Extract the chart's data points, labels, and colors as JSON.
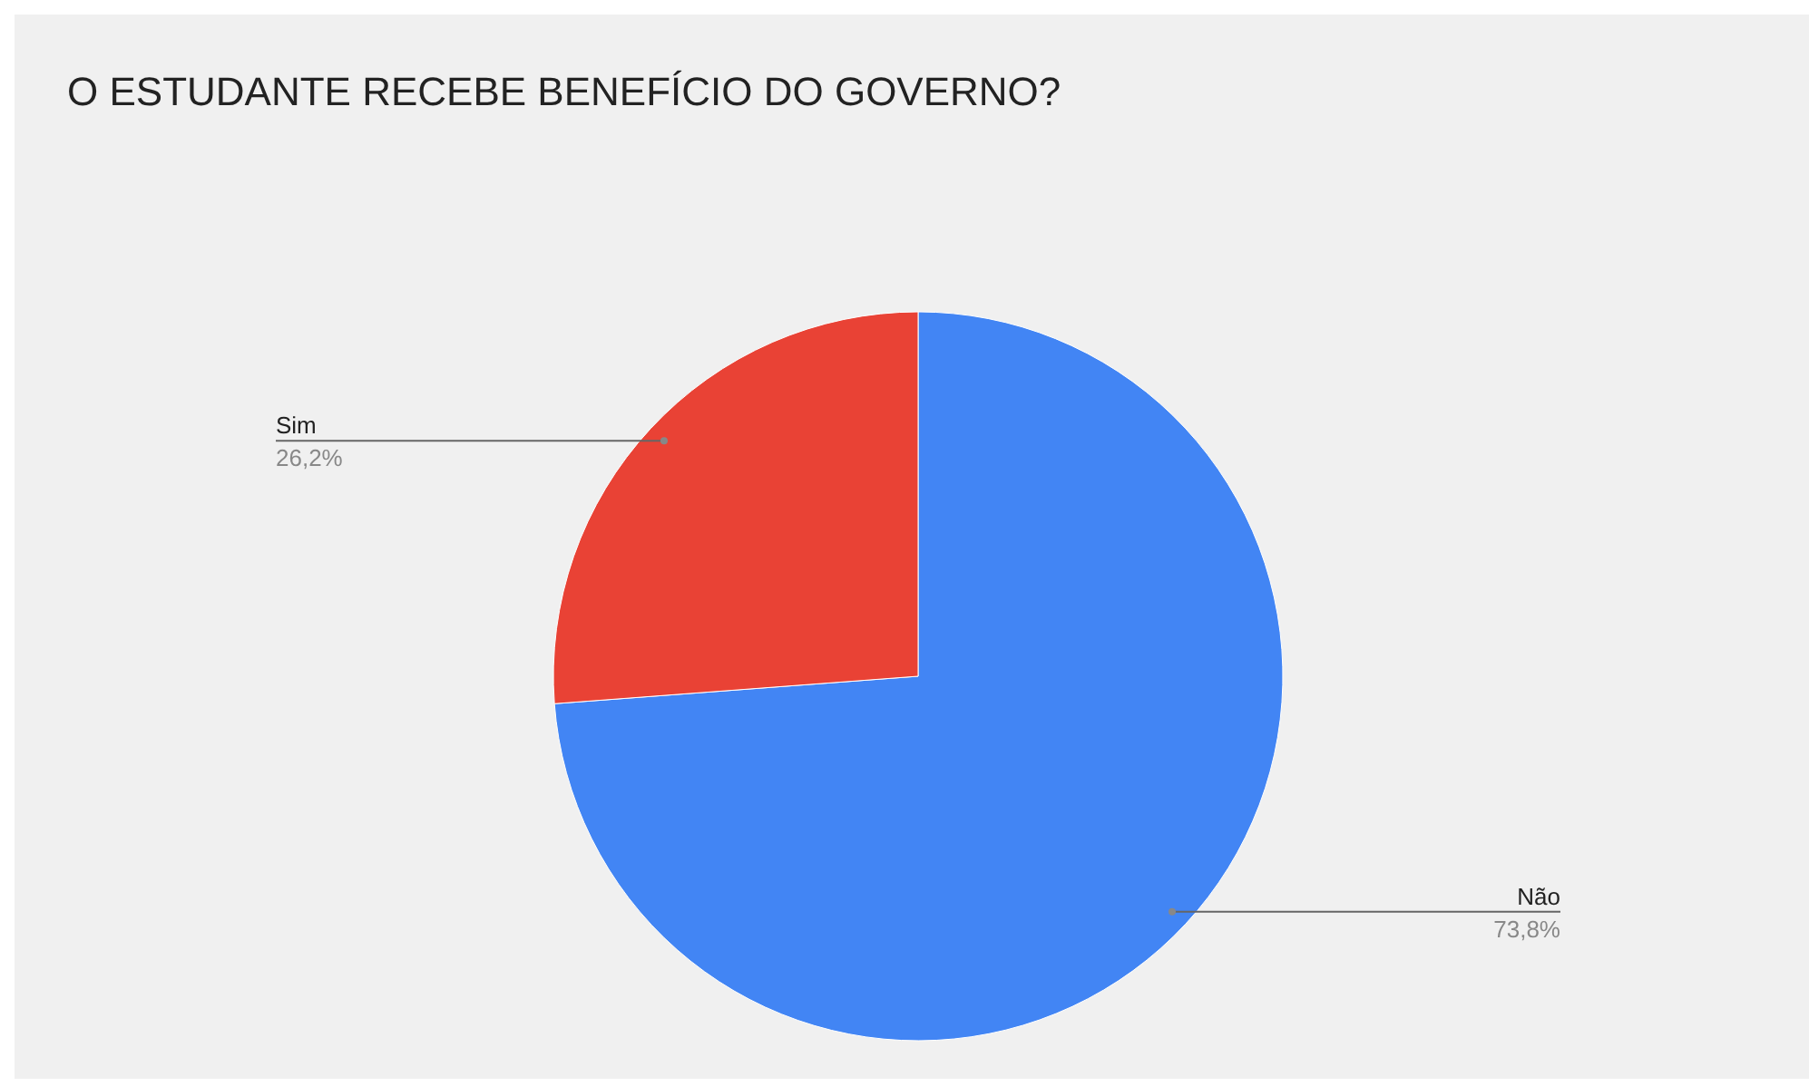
{
  "chart_data": {
    "type": "pie",
    "title": "O ESTUDANTE RECEBE BENEFÍCIO DO GOVERNO?",
    "categories": [
      "Não",
      "Sim"
    ],
    "values": [
      73.8,
      26.2
    ],
    "colors": [
      "#4285f4",
      "#e94235"
    ],
    "value_labels": [
      "73,8%",
      "26,2%"
    ]
  }
}
